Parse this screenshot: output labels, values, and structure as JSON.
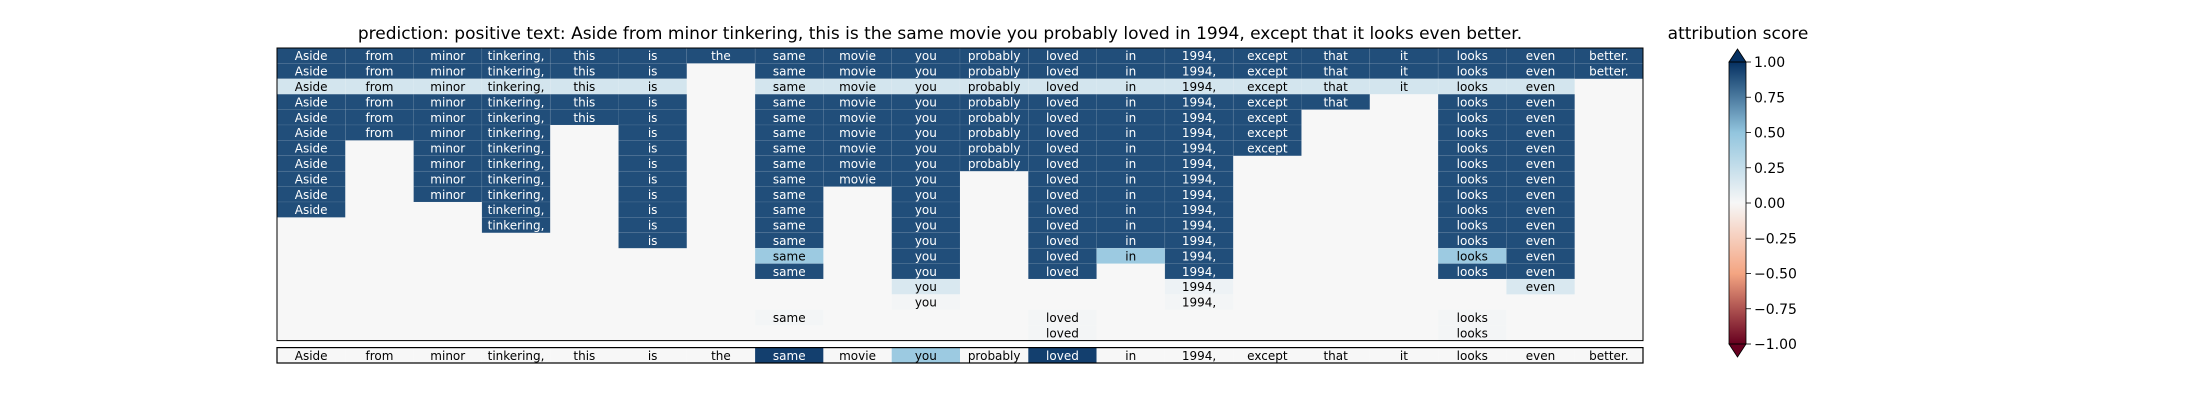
{
  "chart_data": {
    "type": "heatmap",
    "title": "prediction:  positive     text:  Aside from minor tinkering, this is the same movie you probably loved in 1994, except that it looks even better.",
    "colorbar_title": "attribution score",
    "colorbar_range": [
      -1.0,
      1.0
    ],
    "colorbar_ticks": [
      "1.00",
      "0.75",
      "0.50",
      "0.25",
      "0.00",
      "−0.25",
      "−0.50",
      "−0.75",
      "−1.00"
    ],
    "colormap": {
      "negative": "#67001f",
      "mid_negative": "#f4a582",
      "neutral": "#f7f7f7",
      "mid_positive": "#92c5de",
      "positive": "#053061"
    },
    "tokens": [
      "Aside",
      "from",
      "minor",
      "tinkering,",
      "this",
      "is",
      "the",
      "same",
      "movie",
      "you",
      "probably",
      "loved",
      "in",
      "1994,",
      "except",
      "that",
      "it",
      "looks",
      "even",
      "better."
    ],
    "rows": [
      [
        0.9,
        0.9,
        0.9,
        0.9,
        0.9,
        0.9,
        0.9,
        0.9,
        0.9,
        0.9,
        0.9,
        0.9,
        0.9,
        0.9,
        0.9,
        0.9,
        0.9,
        0.9,
        0.9,
        0.9
      ],
      [
        0.9,
        0.9,
        0.9,
        0.9,
        0.9,
        0.9,
        null,
        0.9,
        0.9,
        0.9,
        0.9,
        0.9,
        0.9,
        0.9,
        0.9,
        0.9,
        0.9,
        0.9,
        0.9,
        0.9
      ],
      [
        0.18,
        0.18,
        0.18,
        0.18,
        0.18,
        0.18,
        null,
        0.18,
        0.18,
        0.18,
        0.18,
        0.18,
        0.18,
        0.18,
        0.18,
        0.18,
        0.18,
        0.18,
        0.18,
        null
      ],
      [
        0.9,
        0.9,
        0.9,
        0.9,
        0.9,
        0.9,
        null,
        0.9,
        0.9,
        0.9,
        0.9,
        0.9,
        0.9,
        0.9,
        0.9,
        0.9,
        null,
        0.9,
        0.9,
        null
      ],
      [
        0.9,
        0.9,
        0.9,
        0.9,
        0.9,
        0.9,
        null,
        0.9,
        0.9,
        0.9,
        0.9,
        0.9,
        0.9,
        0.9,
        0.9,
        null,
        null,
        0.9,
        0.9,
        null
      ],
      [
        0.9,
        0.9,
        0.9,
        0.9,
        null,
        0.9,
        null,
        0.9,
        0.9,
        0.9,
        0.9,
        0.9,
        0.9,
        0.9,
        0.9,
        null,
        null,
        0.9,
        0.9,
        null
      ],
      [
        0.9,
        null,
        0.9,
        0.9,
        null,
        0.9,
        null,
        0.9,
        0.9,
        0.9,
        0.9,
        0.9,
        0.9,
        0.9,
        0.9,
        null,
        null,
        0.9,
        0.9,
        null
      ],
      [
        0.9,
        null,
        0.9,
        0.9,
        null,
        0.9,
        null,
        0.9,
        0.9,
        0.9,
        0.9,
        0.9,
        0.9,
        0.9,
        null,
        null,
        null,
        0.9,
        0.9,
        null
      ],
      [
        0.9,
        null,
        0.9,
        0.9,
        null,
        0.9,
        null,
        0.9,
        0.9,
        0.9,
        null,
        0.9,
        0.9,
        0.9,
        null,
        null,
        null,
        0.9,
        0.9,
        null
      ],
      [
        0.9,
        null,
        0.9,
        0.9,
        null,
        0.9,
        null,
        0.9,
        null,
        0.9,
        null,
        0.9,
        0.9,
        0.9,
        null,
        null,
        null,
        0.9,
        0.9,
        null
      ],
      [
        0.9,
        null,
        null,
        0.9,
        null,
        0.9,
        null,
        0.9,
        null,
        0.9,
        null,
        0.9,
        0.9,
        0.9,
        null,
        null,
        null,
        0.9,
        0.9,
        null
      ],
      [
        null,
        null,
        null,
        0.9,
        null,
        0.9,
        null,
        0.9,
        null,
        0.9,
        null,
        0.9,
        0.9,
        0.9,
        null,
        null,
        null,
        0.9,
        0.9,
        null
      ],
      [
        null,
        null,
        null,
        null,
        null,
        0.9,
        null,
        0.9,
        null,
        0.9,
        null,
        0.9,
        0.9,
        0.9,
        null,
        null,
        null,
        0.9,
        0.9,
        null
      ],
      [
        null,
        null,
        null,
        null,
        null,
        null,
        null,
        0.45,
        null,
        0.9,
        null,
        0.9,
        0.45,
        0.9,
        null,
        null,
        null,
        0.45,
        0.9,
        null
      ],
      [
        null,
        null,
        null,
        null,
        null,
        null,
        null,
        0.9,
        null,
        0.9,
        null,
        0.9,
        null,
        0.9,
        null,
        null,
        null,
        0.9,
        0.9,
        null
      ],
      [
        null,
        null,
        null,
        null,
        null,
        null,
        null,
        null,
        null,
        0.15,
        null,
        null,
        null,
        0.05,
        null,
        null,
        null,
        null,
        0.15,
        null
      ],
      [
        null,
        null,
        null,
        null,
        null,
        null,
        null,
        null,
        null,
        0.02,
        null,
        null,
        null,
        0.02,
        null,
        null,
        null,
        null,
        null,
        null
      ],
      [
        null,
        null,
        null,
        null,
        null,
        null,
        null,
        0.02,
        null,
        null,
        null,
        0.02,
        null,
        null,
        null,
        null,
        null,
        0.02,
        null,
        null
      ],
      [
        null,
        null,
        null,
        null,
        null,
        null,
        null,
        null,
        null,
        null,
        null,
        0.02,
        null,
        null,
        null,
        null,
        null,
        0.02,
        null,
        null
      ]
    ],
    "summary_row": [
      0.0,
      0.0,
      0.0,
      0.0,
      0.0,
      0.0,
      0.0,
      0.95,
      0.0,
      0.45,
      0.0,
      0.95,
      0.0,
      0.0,
      0.0,
      0.0,
      0.0,
      0.0,
      0.0,
      0.0
    ]
  }
}
